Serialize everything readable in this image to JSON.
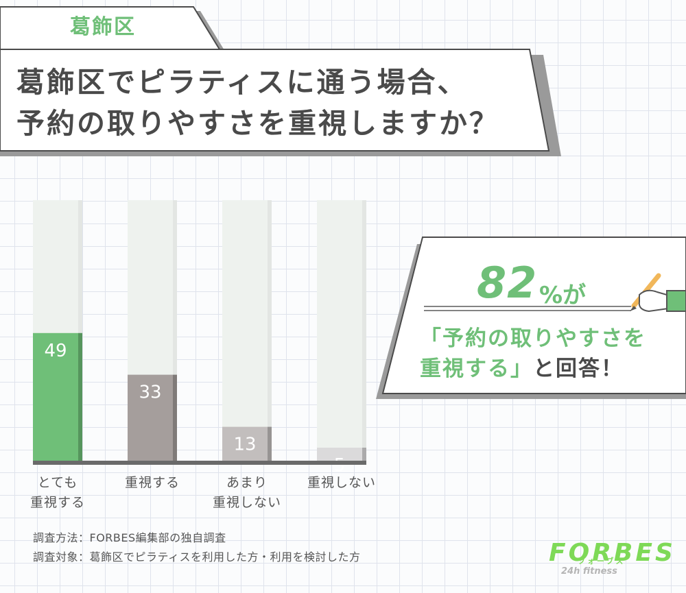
{
  "header": {
    "tag": "葛飾区",
    "title_line1": "葛飾区でピラティスに通う場合、",
    "title_line2": "予約の取りやすさを重視しますか？"
  },
  "chart_data": {
    "type": "bar",
    "categories": [
      "とても\n重視する",
      "重視する",
      "あまり\n重視しない",
      "重視しない"
    ],
    "values": [
      49,
      33,
      13,
      5
    ],
    "ylim": [
      0,
      100
    ],
    "colors": [
      "#6fbf78",
      "#a59e9c",
      "#c2bebd",
      "#dbdadb"
    ],
    "grid": false
  },
  "callout": {
    "percent": "82",
    "suffix": "%が",
    "line1": "「予約の取りやすさを",
    "line2_highlight": "重視する」",
    "line2_rest": "と回答！"
  },
  "notes": {
    "method": "調査方法：FORBES編集部の独自調査",
    "target": "調査対象：葛飾区でピラティスを利用した方・利用を検討した方"
  },
  "logo": {
    "name": "FORBES",
    "kana": "フォーブス",
    "sub": "24h fitness"
  },
  "icons": [
    "hand-pencil-icon"
  ]
}
